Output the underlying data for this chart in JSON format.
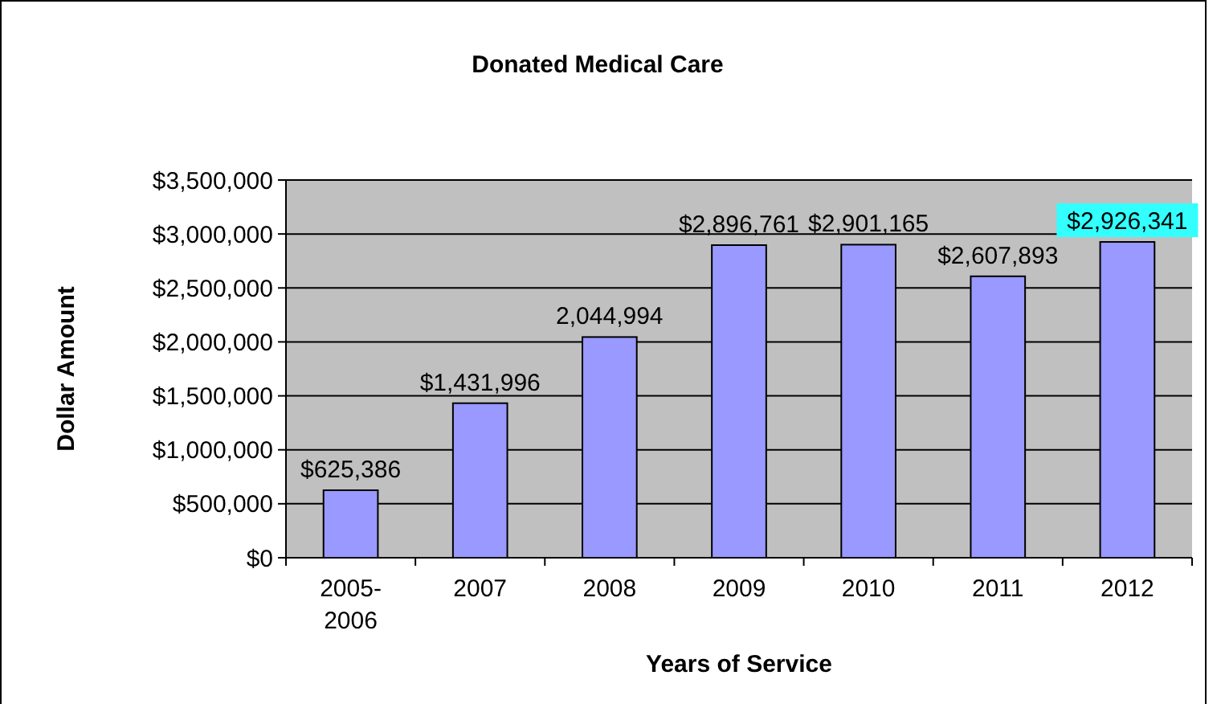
{
  "chart_data": {
    "type": "bar",
    "title": "Donated Medical Care",
    "xlabel": "Years of Service",
    "ylabel": "Dollar Amount",
    "categories": [
      "2005-2006",
      "2007",
      "2008",
      "2009",
      "2010",
      "2011",
      "2012"
    ],
    "values": [
      625386,
      1431996,
      2044994,
      2896761,
      2901165,
      2607893,
      2926341
    ],
    "value_labels": [
      "$625,386",
      "$1,431,996",
      "2,044,994",
      "$2,896,761",
      "$2,901,165",
      "$2,607,893",
      "$2,926,341"
    ],
    "color": "#9999ff",
    "ylim": [
      0,
      3500000
    ],
    "yticks": [
      {
        "value": 0,
        "label": "$0"
      },
      {
        "value": 500000,
        "label": "$500,000"
      },
      {
        "value": 1000000,
        "label": "$1,000,000"
      },
      {
        "value": 1500000,
        "label": "$1,500,000"
      },
      {
        "value": 2000000,
        "label": "$2,000,000"
      },
      {
        "value": 2500000,
        "label": "$2,500,000"
      },
      {
        "value": 3000000,
        "label": "$3,000,000"
      },
      {
        "value": 3500000,
        "label": "$3,500,000"
      }
    ],
    "grid": "y"
  }
}
